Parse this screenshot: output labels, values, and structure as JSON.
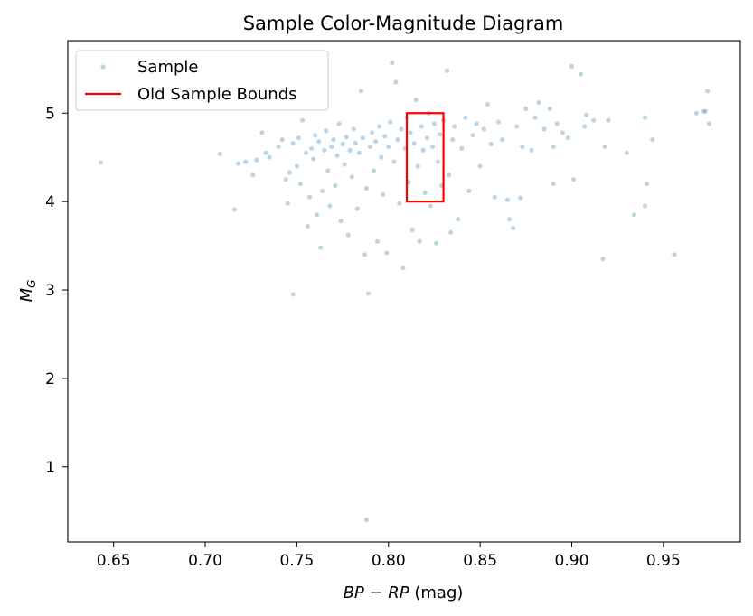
{
  "chart_data": {
    "type": "scatter",
    "title": "Sample Color-Magnitude Diagram",
    "xlabel": {
      "main": "BP − RP",
      "unit": " (mag)"
    },
    "ylabel": {
      "main": "M",
      "sub": "G"
    },
    "xlim": [
      0.625,
      0.992
    ],
    "ylim": [
      0.15,
      5.82
    ],
    "xticks": [
      0.65,
      0.7,
      0.75,
      0.8,
      0.85,
      0.9,
      0.95
    ],
    "xtick_labels": [
      "0.65",
      "0.70",
      "0.75",
      "0.80",
      "0.85",
      "0.90",
      "0.95"
    ],
    "yticks": [
      1,
      2,
      3,
      4,
      5
    ],
    "ytick_labels": [
      "1",
      "2",
      "3",
      "4",
      "5"
    ],
    "grid": false,
    "legend_position": "upper-left",
    "colors": {
      "points": "#1f77b4",
      "bounds": "#ff0000"
    },
    "series": [
      {
        "name": "Sample",
        "kind": "points",
        "points": [
          [
            0.643,
            4.44
          ],
          [
            0.708,
            4.54
          ],
          [
            0.716,
            3.91
          ],
          [
            0.718,
            4.43
          ],
          [
            0.722,
            4.45
          ],
          [
            0.726,
            4.3
          ],
          [
            0.728,
            4.47
          ],
          [
            0.731,
            4.78
          ],
          [
            0.733,
            4.55
          ],
          [
            0.735,
            4.5
          ],
          [
            0.74,
            4.62
          ],
          [
            0.742,
            4.7
          ],
          [
            0.744,
            4.25
          ],
          [
            0.745,
            3.98
          ],
          [
            0.746,
            4.33
          ],
          [
            0.748,
            2.95
          ],
          [
            0.748,
            4.66
          ],
          [
            0.75,
            4.4
          ],
          [
            0.751,
            4.72
          ],
          [
            0.752,
            4.2
          ],
          [
            0.753,
            4.92
          ],
          [
            0.755,
            4.55
          ],
          [
            0.756,
            3.72
          ],
          [
            0.757,
            4.05
          ],
          [
            0.758,
            4.6
          ],
          [
            0.759,
            4.48
          ],
          [
            0.76,
            4.75
          ],
          [
            0.761,
            3.85
          ],
          [
            0.762,
            4.68
          ],
          [
            0.763,
            3.48
          ],
          [
            0.764,
            4.12
          ],
          [
            0.765,
            4.58
          ],
          [
            0.766,
            4.8
          ],
          [
            0.767,
            4.35
          ],
          [
            0.768,
            3.95
          ],
          [
            0.769,
            4.62
          ],
          [
            0.77,
            4.7
          ],
          [
            0.771,
            4.18
          ],
          [
            0.772,
            4.52
          ],
          [
            0.773,
            4.88
          ],
          [
            0.774,
            3.78
          ],
          [
            0.775,
            4.65
          ],
          [
            0.776,
            4.42
          ],
          [
            0.777,
            4.73
          ],
          [
            0.778,
            3.62
          ],
          [
            0.779,
            4.58
          ],
          [
            0.78,
            4.28
          ],
          [
            0.781,
            4.82
          ],
          [
            0.782,
            4.66
          ],
          [
            0.783,
            3.92
          ],
          [
            0.784,
            4.55
          ],
          [
            0.785,
            5.25
          ],
          [
            0.786,
            4.72
          ],
          [
            0.787,
            3.4
          ],
          [
            0.788,
            4.15
          ],
          [
            0.788,
            0.4
          ],
          [
            0.789,
            2.96
          ],
          [
            0.79,
            4.62
          ],
          [
            0.791,
            4.78
          ],
          [
            0.792,
            4.35
          ],
          [
            0.793,
            4.68
          ],
          [
            0.794,
            3.55
          ],
          [
            0.795,
            4.85
          ],
          [
            0.796,
            4.5
          ],
          [
            0.797,
            4.08
          ],
          [
            0.798,
            4.74
          ],
          [
            0.799,
            3.42
          ],
          [
            0.8,
            4.62
          ],
          [
            0.801,
            4.9
          ],
          [
            0.802,
            5.57
          ],
          [
            0.803,
            4.45
          ],
          [
            0.804,
            5.35
          ],
          [
            0.805,
            4.7
          ],
          [
            0.806,
            3.98
          ],
          [
            0.807,
            4.82
          ],
          [
            0.808,
            3.25
          ],
          [
            0.809,
            4.6
          ],
          [
            0.81,
            4.95
          ],
          [
            0.811,
            4.22
          ],
          [
            0.812,
            4.78
          ],
          [
            0.813,
            3.68
          ],
          [
            0.814,
            4.66
          ],
          [
            0.815,
            5.15
          ],
          [
            0.816,
            4.4
          ],
          [
            0.817,
            3.55
          ],
          [
            0.818,
            4.85
          ],
          [
            0.819,
            4.58
          ],
          [
            0.82,
            4.1
          ],
          [
            0.821,
            4.72
          ],
          [
            0.822,
            5.0
          ],
          [
            0.823,
            3.95
          ],
          [
            0.824,
            4.62
          ],
          [
            0.825,
            4.88
          ],
          [
            0.826,
            3.53
          ],
          [
            0.827,
            4.45
          ],
          [
            0.828,
            4.76
          ],
          [
            0.829,
            4.18
          ],
          [
            0.83,
            4.92
          ],
          [
            0.832,
            5.48
          ],
          [
            0.833,
            4.3
          ],
          [
            0.834,
            3.65
          ],
          [
            0.835,
            4.7
          ],
          [
            0.836,
            4.85
          ],
          [
            0.838,
            3.8
          ],
          [
            0.84,
            4.6
          ],
          [
            0.842,
            4.95
          ],
          [
            0.844,
            4.12
          ],
          [
            0.846,
            4.75
          ],
          [
            0.848,
            4.88
          ],
          [
            0.85,
            4.4
          ],
          [
            0.852,
            4.82
          ],
          [
            0.854,
            5.1
          ],
          [
            0.856,
            4.65
          ],
          [
            0.858,
            4.05
          ],
          [
            0.86,
            4.9
          ],
          [
            0.862,
            4.7
          ],
          [
            0.865,
            4.02
          ],
          [
            0.866,
            3.8
          ],
          [
            0.868,
            3.7
          ],
          [
            0.87,
            4.85
          ],
          [
            0.872,
            4.04
          ],
          [
            0.873,
            4.62
          ],
          [
            0.875,
            5.05
          ],
          [
            0.878,
            4.58
          ],
          [
            0.88,
            4.95
          ],
          [
            0.882,
            5.12
          ],
          [
            0.885,
            4.82
          ],
          [
            0.888,
            5.05
          ],
          [
            0.89,
            4.62
          ],
          [
            0.89,
            4.2
          ],
          [
            0.892,
            4.88
          ],
          [
            0.895,
            4.78
          ],
          [
            0.898,
            4.72
          ],
          [
            0.9,
            5.53
          ],
          [
            0.901,
            4.25
          ],
          [
            0.905,
            5.44
          ],
          [
            0.907,
            4.85
          ],
          [
            0.908,
            4.98
          ],
          [
            0.912,
            4.92
          ],
          [
            0.917,
            3.35
          ],
          [
            0.918,
            4.62
          ],
          [
            0.92,
            4.92
          ],
          [
            0.93,
            4.55
          ],
          [
            0.934,
            3.85
          ],
          [
            0.94,
            4.95
          ],
          [
            0.94,
            3.95
          ],
          [
            0.941,
            4.2
          ],
          [
            0.944,
            4.7
          ],
          [
            0.956,
            3.4
          ],
          [
            0.968,
            5.0
          ],
          [
            0.972,
            5.02
          ],
          [
            0.974,
            5.25
          ],
          [
            0.975,
            4.88
          ],
          [
            0.973,
            5.02
          ]
        ]
      },
      {
        "name": "Old Sample Bounds",
        "kind": "rectangle",
        "x": [
          0.81,
          0.83
        ],
        "y": [
          4.0,
          5.0
        ]
      }
    ]
  }
}
